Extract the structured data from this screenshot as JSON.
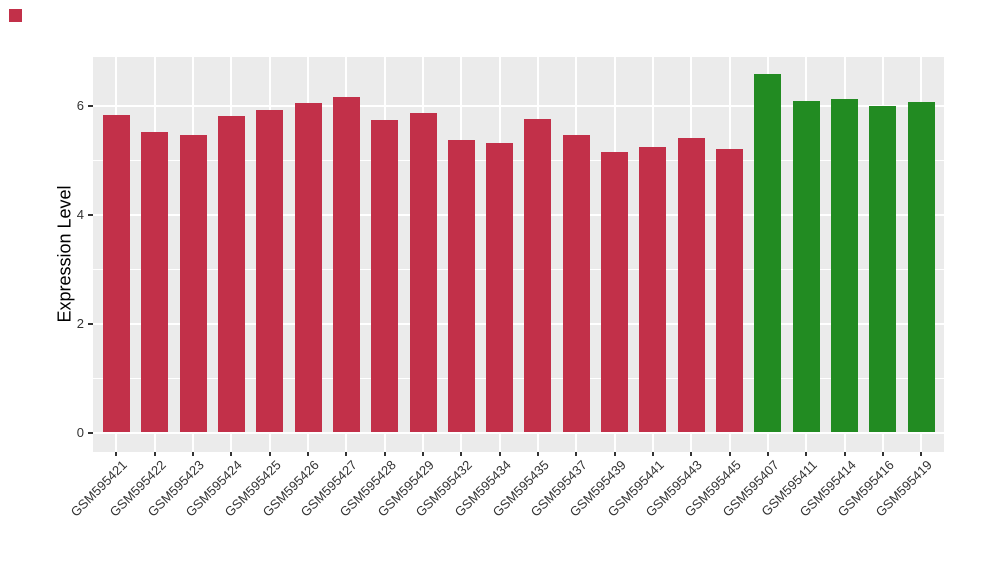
{
  "chart_data": {
    "type": "bar",
    "title": "",
    "xlabel": "",
    "ylabel": "Expression Level",
    "categories": [
      "GSM595421",
      "GSM595422",
      "GSM595423",
      "GSM595424",
      "GSM595425",
      "GSM595426",
      "GSM595427",
      "GSM595428",
      "GSM595429",
      "GSM595432",
      "GSM595434",
      "GSM595435",
      "GSM595437",
      "GSM595439",
      "GSM595441",
      "GSM595443",
      "GSM595445",
      "GSM595407",
      "GSM595411",
      "GSM595414",
      "GSM595416",
      "GSM595419"
    ],
    "values": [
      5.83,
      5.51,
      5.46,
      5.81,
      5.91,
      6.04,
      6.15,
      5.73,
      5.87,
      5.37,
      5.31,
      5.76,
      5.45,
      5.14,
      5.24,
      5.4,
      5.2,
      6.57,
      6.09,
      6.12,
      5.99,
      6.07
    ],
    "bar_colors": [
      "#C23049",
      "#C23049",
      "#C23049",
      "#C23049",
      "#C23049",
      "#C23049",
      "#C23049",
      "#C23049",
      "#C23049",
      "#C23049",
      "#C23049",
      "#C23049",
      "#C23049",
      "#C23049",
      "#C23049",
      "#C23049",
      "#C23049",
      "#228B22",
      "#228B22",
      "#228B22",
      "#228B22",
      "#228B22"
    ],
    "yticks": [
      0,
      2,
      4,
      6
    ],
    "minor_yticks": [
      1,
      3,
      5
    ],
    "ylim": [
      -0.35,
      6.9
    ],
    "grid": true,
    "legend": "none",
    "panel_background": "#EBEBEB",
    "gridline_color": "#FFFFFF"
  },
  "marker_square": {
    "color": "#C23049"
  }
}
